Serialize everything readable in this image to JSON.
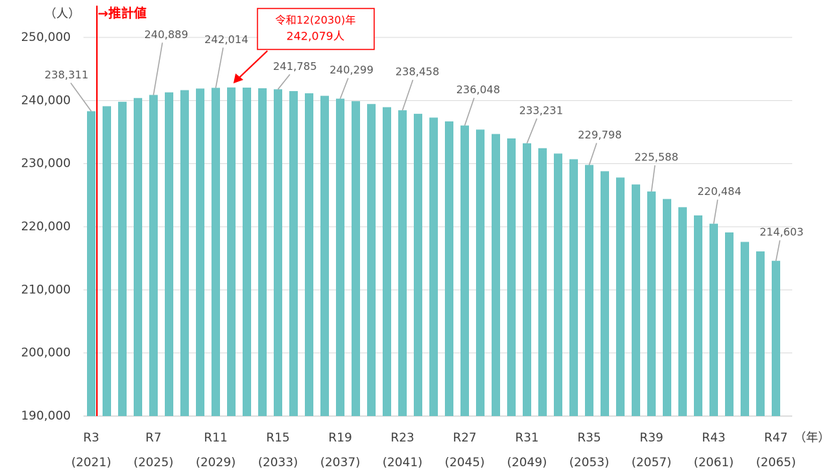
{
  "chart_data": {
    "type": "bar",
    "y_unit": "（人）",
    "x_unit": "（年）",
    "estimate_marker": "→推計値",
    "annotation": {
      "lines": [
        "令和12(2030)年",
        "242,079人"
      ]
    },
    "categories": [
      "R3",
      null,
      null,
      null,
      "R7",
      null,
      null,
      null,
      "R11",
      null,
      null,
      null,
      "R15",
      null,
      null,
      null,
      "R19",
      null,
      null,
      null,
      "R23",
      null,
      null,
      null,
      "R27",
      null,
      null,
      null,
      "R31",
      null,
      null,
      null,
      "R35",
      null,
      null,
      null,
      "R39",
      null,
      null,
      null,
      "R43",
      null,
      null,
      null,
      "R47"
    ],
    "category_years": [
      "(2021)",
      null,
      null,
      null,
      "(2025)",
      null,
      null,
      null,
      "(2029)",
      null,
      null,
      null,
      "(2033)",
      null,
      null,
      null,
      "(2037)",
      null,
      null,
      null,
      "(2041)",
      null,
      null,
      null,
      "(2045)",
      null,
      null,
      null,
      "(2049)",
      null,
      null,
      null,
      "(2053)",
      null,
      null,
      null,
      "(2057)",
      null,
      null,
      null,
      "(2061)",
      null,
      null,
      null,
      "(2065)"
    ],
    "values": [
      238311,
      239100,
      239800,
      240400,
      240889,
      241300,
      241650,
      241900,
      242014,
      242079,
      242050,
      241950,
      241785,
      241500,
      241150,
      240750,
      240299,
      239900,
      239450,
      238950,
      238458,
      237900,
      237300,
      236700,
      236048,
      235400,
      234700,
      234000,
      233231,
      232450,
      231600,
      230700,
      229798,
      228800,
      227800,
      226700,
      225588,
      224400,
      223100,
      221800,
      220484,
      219100,
      217600,
      216100,
      214603
    ],
    "value_labels": [
      "238,311",
      null,
      null,
      null,
      "240,889",
      null,
      null,
      null,
      "242,014",
      null,
      null,
      null,
      "241,785",
      null,
      null,
      null,
      "240,299",
      null,
      null,
      null,
      "238,458",
      null,
      null,
      null,
      "236,048",
      null,
      null,
      null,
      "233,231",
      null,
      null,
      null,
      "229,798",
      null,
      null,
      null,
      "225,588",
      null,
      null,
      null,
      "220,484",
      null,
      null,
      null,
      "214,603"
    ],
    "color": "#6cc4c4",
    "ylim": [
      190000,
      250000
    ],
    "yticks": [
      {
        "value": 190000,
        "label": "190,000"
      },
      {
        "value": 200000,
        "label": "200,000"
      },
      {
        "value": 210000,
        "label": "210,000"
      },
      {
        "value": 220000,
        "label": "220,000"
      },
      {
        "value": 230000,
        "label": "230,000"
      },
      {
        "value": 240000,
        "label": "240,000"
      },
      {
        "value": 250000,
        "label": "250,000"
      }
    ],
    "grid": true
  }
}
